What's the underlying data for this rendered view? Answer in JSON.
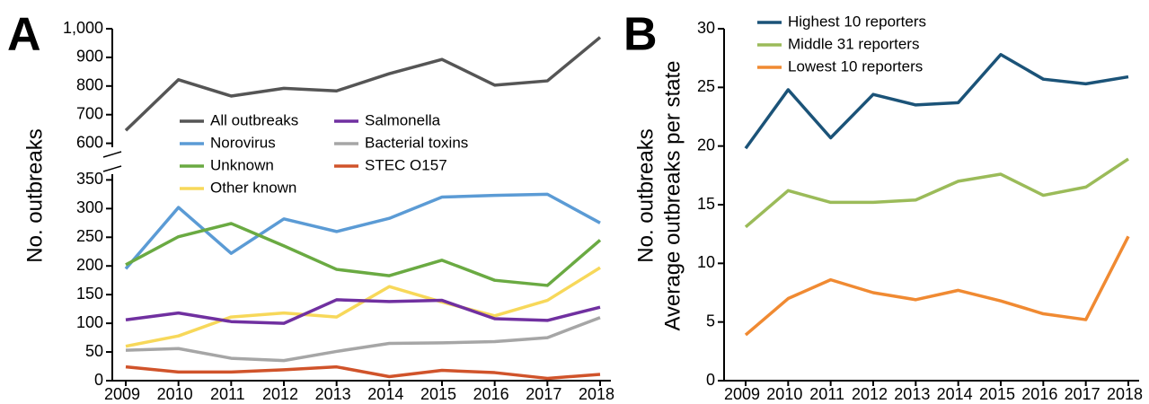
{
  "chart_data": [
    {
      "type": "line",
      "panel": "A",
      "ylabel": [
        "No. outbreaks"
      ],
      "categories": [
        "2009",
        "2010",
        "2011",
        "2012",
        "2013",
        "2014",
        "2015",
        "2016",
        "2017",
        "2018"
      ],
      "ylim": [
        [
          0,
          360
        ],
        [
          580,
          1000
        ]
      ],
      "yticks": [
        0,
        50,
        100,
        150,
        200,
        250,
        300,
        350,
        600,
        700,
        800,
        900,
        {
          "value": 1000,
          "label": "1,000"
        }
      ],
      "series": [
        {
          "name": "All outbreaks",
          "color": "#555555",
          "values": [
            645,
            822,
            765,
            792,
            783,
            843,
            893,
            803,
            818,
            970
          ]
        },
        {
          "name": "Norovirus",
          "color": "#5b9bd5",
          "values": [
            195,
            302,
            222,
            282,
            260,
            283,
            320,
            323,
            325,
            275
          ]
        },
        {
          "name": "Unknown",
          "color": "#6aaa42",
          "values": [
            202,
            251,
            274,
            235,
            194,
            183,
            210,
            175,
            166,
            245
          ]
        },
        {
          "name": "Other known",
          "color": "#f7d85a",
          "values": [
            60,
            78,
            111,
            118,
            111,
            164,
            137,
            113,
            140,
            197
          ]
        },
        {
          "name": "Salmonella",
          "color": "#7030a0",
          "values": [
            106,
            118,
            103,
            100,
            141,
            138,
            140,
            108,
            105,
            128
          ]
        },
        {
          "name": "Bacterial toxins",
          "color": "#a6a6a6",
          "values": [
            53,
            56,
            39,
            35,
            51,
            65,
            66,
            68,
            75,
            110
          ]
        },
        {
          "name": "STEC O157",
          "color": "#d0532a",
          "values": [
            24,
            15,
            15,
            19,
            24,
            7,
            18,
            14,
            4,
            11
          ]
        }
      ]
    },
    {
      "type": "line",
      "panel": "B",
      "ylabel": [
        "No. outbreaks",
        "Average outbreaks per state"
      ],
      "categories": [
        "2009",
        "2010",
        "2011",
        "2012",
        "2013",
        "2014",
        "2015",
        "2016",
        "2017",
        "2018"
      ],
      "ylim": [
        [
          0,
          30
        ]
      ],
      "yticks": [
        0,
        5,
        10,
        15,
        20,
        25,
        30
      ],
      "series": [
        {
          "name": "Highest 10 reporters",
          "color": "#1b5378",
          "values": [
            19.8,
            24.8,
            20.7,
            24.4,
            23.5,
            23.7,
            27.8,
            25.7,
            25.3,
            25.9
          ]
        },
        {
          "name": "Middle 31 reporters",
          "color": "#9bbb59",
          "values": [
            13.1,
            16.2,
            15.2,
            15.2,
            15.4,
            17.0,
            17.6,
            15.8,
            16.5,
            18.9
          ]
        },
        {
          "name": "Lowest 10 reporters",
          "color": "#f08a32",
          "values": [
            3.9,
            7.0,
            8.6,
            7.5,
            6.9,
            7.7,
            6.8,
            5.7,
            5.2,
            12.3
          ]
        }
      ]
    }
  ]
}
